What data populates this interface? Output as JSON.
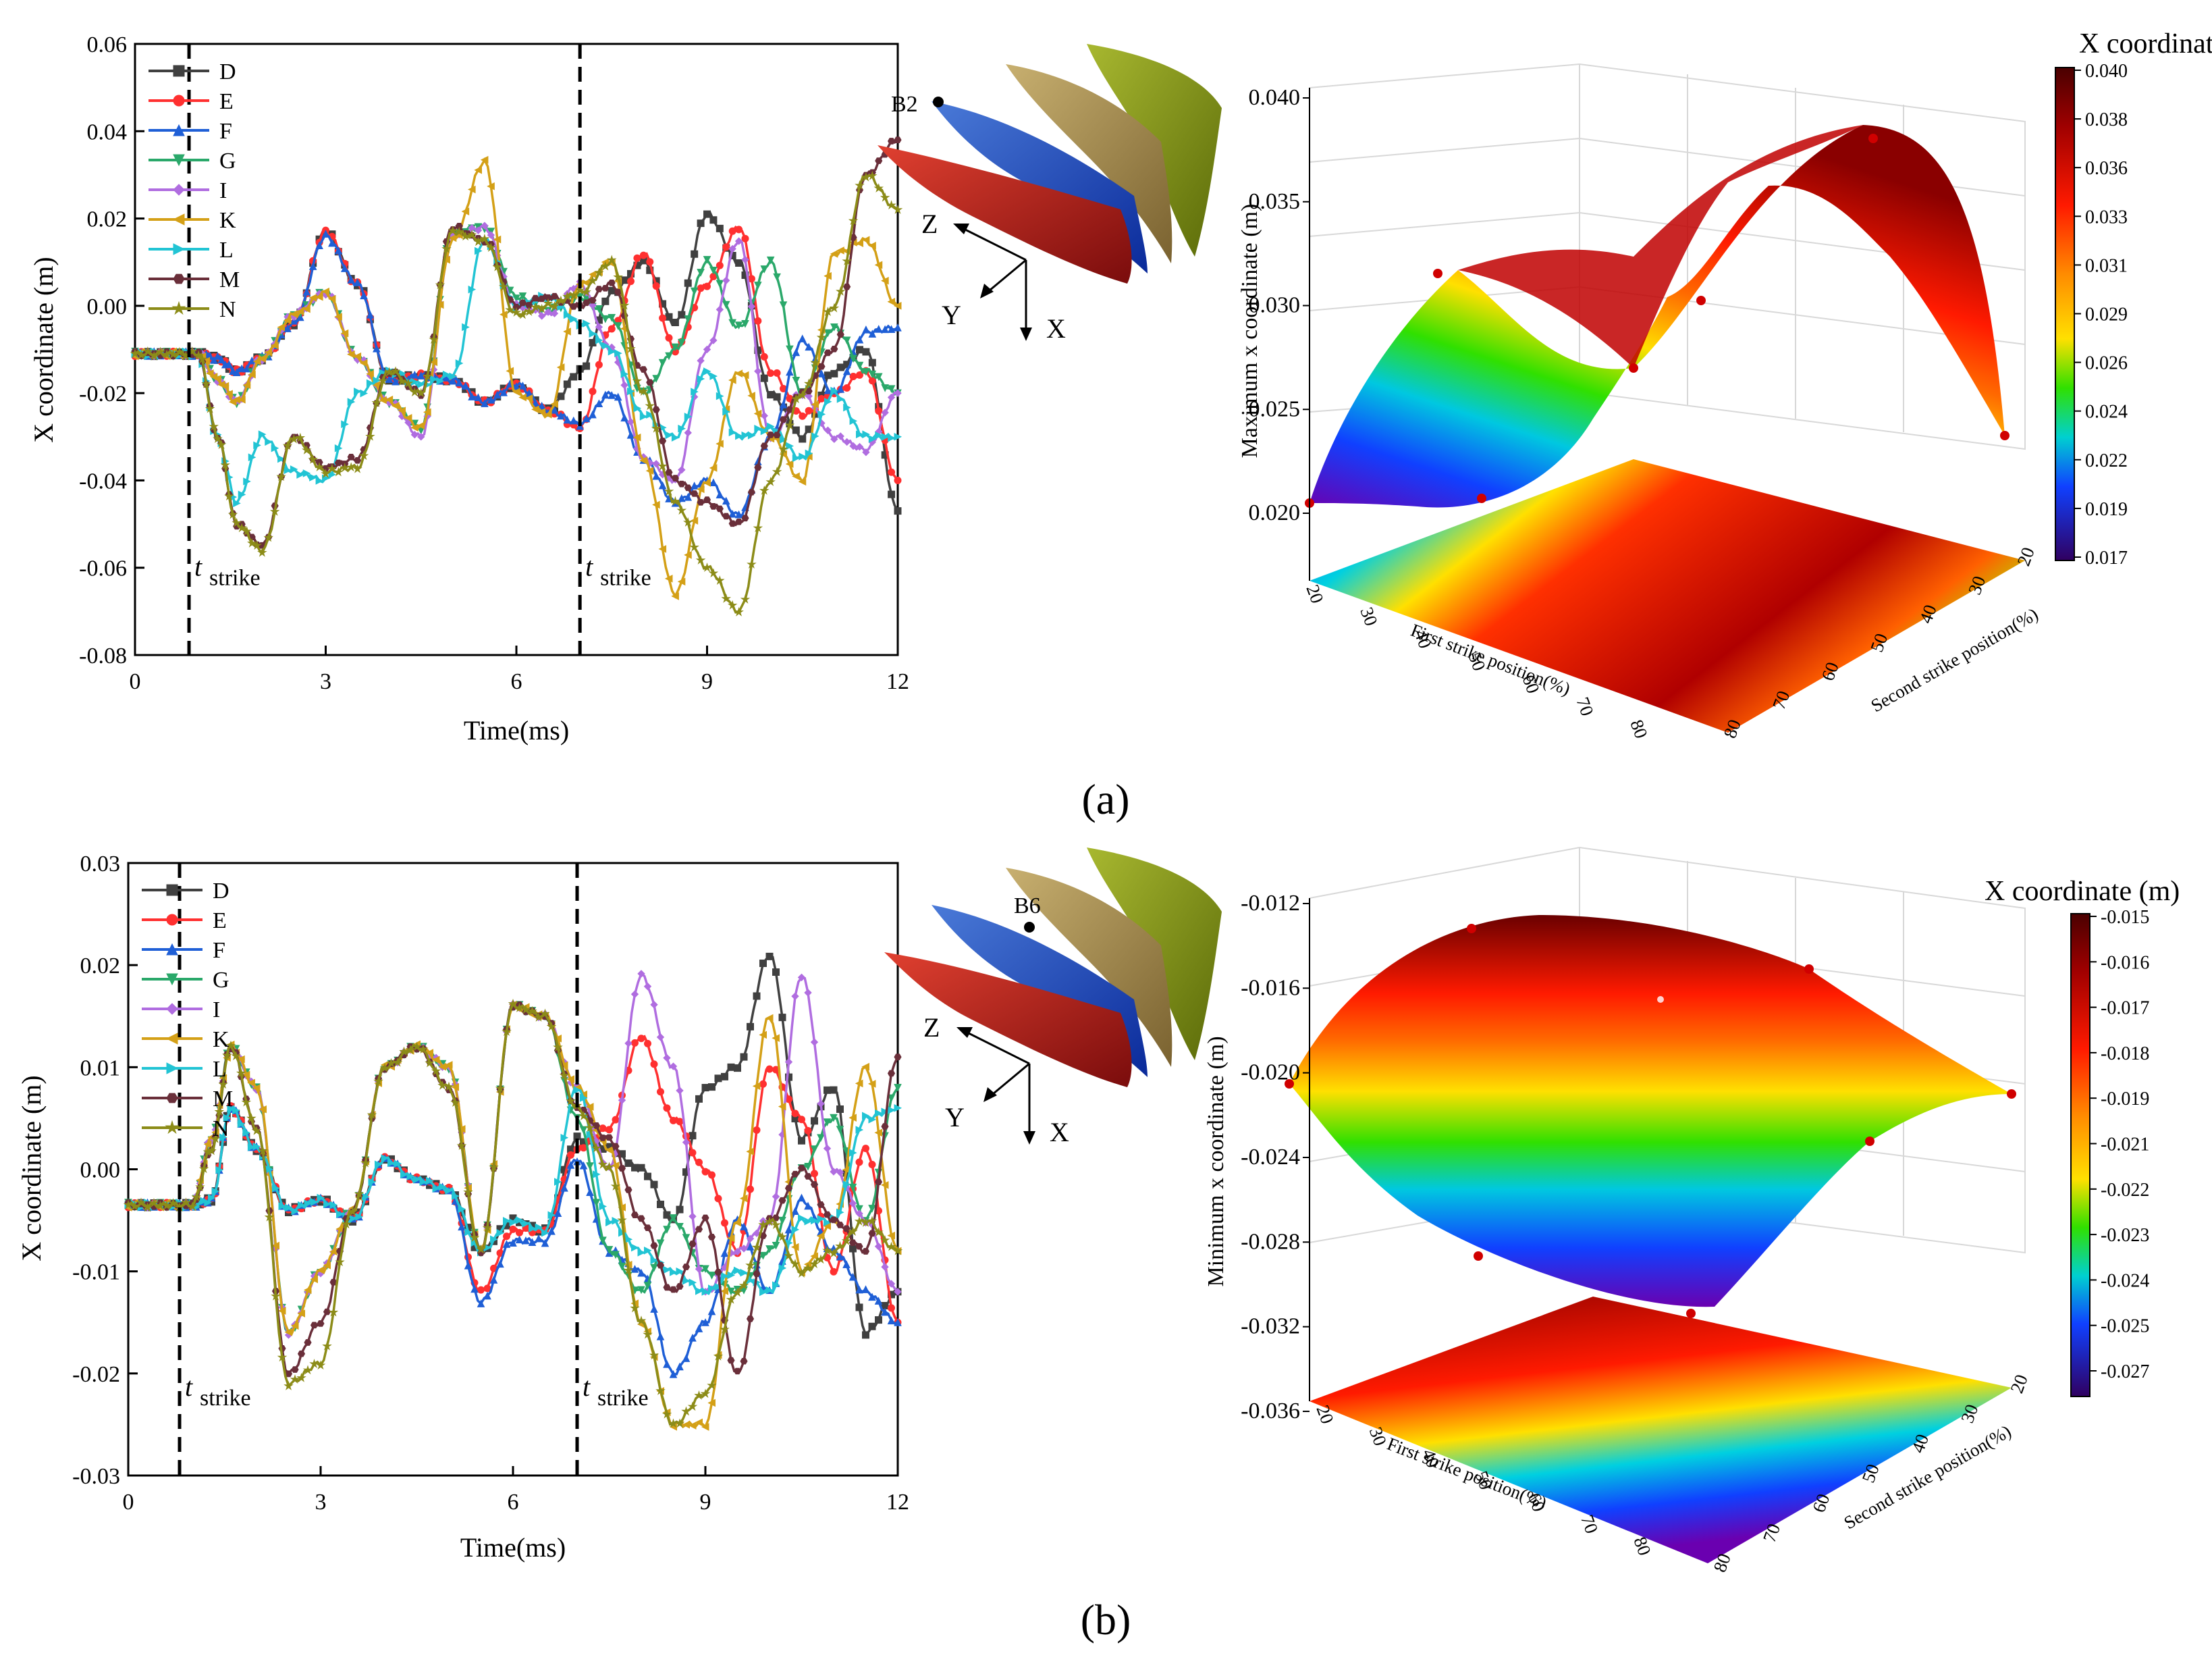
{
  "chart_data": [
    {
      "id": "a-line",
      "type": "line",
      "xlabel": "Time(ms)",
      "ylabel": "X coordinate (m)",
      "xlim": [
        0,
        12
      ],
      "ylim": [
        -0.08,
        0.06
      ],
      "xticks": [
        0,
        3,
        6,
        9,
        12
      ],
      "yticks": [
        -0.08,
        -0.06,
        -0.04,
        -0.02,
        0.0,
        0.02,
        0.04,
        0.06
      ],
      "xtick_labels": [
        "0",
        "3",
        "6",
        "9",
        "12"
      ],
      "ytick_labels": [
        "-0.08",
        "-0.06",
        "-0.04",
        "-0.02",
        "0.00",
        "0.02",
        "0.04",
        "0.06"
      ],
      "strike_times": [
        0.85,
        7.0
      ],
      "strike_label": "t",
      "strike_sub": "strike",
      "x": [
        0,
        0.5,
        1.0,
        1.3,
        1.6,
        2.0,
        2.5,
        3.0,
        3.5,
        4.0,
        4.5,
        5.0,
        5.5,
        6.0,
        6.5,
        7.0,
        7.5,
        8.0,
        8.5,
        9.0,
        9.5,
        10.0,
        10.5,
        11.0,
        11.5,
        12.0
      ],
      "series": [
        {
          "name": "D",
          "color": "#404040",
          "marker": "square",
          "values": [
            -0.011,
            -0.011,
            -0.011,
            -0.012,
            -0.015,
            -0.012,
            -0.004,
            0.017,
            0.005,
            -0.017,
            -0.016,
            -0.017,
            -0.022,
            -0.018,
            -0.024,
            -0.015,
            0.003,
            0.01,
            -0.004,
            0.021,
            0.01,
            -0.02,
            -0.03,
            -0.015,
            -0.01,
            -0.047
          ]
        },
        {
          "name": "E",
          "color": "#ff3030",
          "marker": "circle",
          "values": [
            -0.011,
            -0.011,
            -0.011,
            -0.012,
            -0.015,
            -0.012,
            -0.004,
            0.017,
            0.005,
            -0.017,
            -0.016,
            -0.017,
            -0.022,
            -0.018,
            -0.024,
            -0.028,
            -0.005,
            0.012,
            -0.01,
            0.005,
            0.018,
            -0.015,
            -0.025,
            -0.02,
            -0.015,
            -0.04
          ]
        },
        {
          "name": "F",
          "color": "#1f5fd6",
          "marker": "triangle",
          "values": [
            -0.011,
            -0.011,
            -0.011,
            -0.012,
            -0.015,
            -0.012,
            -0.004,
            0.016,
            0.005,
            -0.017,
            -0.016,
            -0.017,
            -0.022,
            -0.018,
            -0.024,
            -0.027,
            -0.02,
            -0.035,
            -0.045,
            -0.04,
            -0.048,
            -0.03,
            -0.008,
            -0.02,
            -0.006,
            -0.005
          ]
        },
        {
          "name": "G",
          "color": "#2aa86a",
          "marker": "triangle-down",
          "values": [
            -0.011,
            -0.011,
            -0.011,
            -0.017,
            -0.022,
            -0.012,
            -0.002,
            0.003,
            -0.012,
            -0.022,
            -0.028,
            0.017,
            0.018,
            0.002,
            -0.001,
            0.002,
            -0.003,
            -0.02,
            -0.01,
            0.01,
            -0.005,
            0.01,
            -0.02,
            -0.005,
            -0.015,
            -0.02
          ]
        },
        {
          "name": "I",
          "color": "#b06de0",
          "marker": "diamond",
          "values": [
            -0.011,
            -0.011,
            -0.011,
            -0.017,
            -0.022,
            -0.012,
            -0.002,
            0.003,
            -0.012,
            -0.022,
            -0.03,
            0.016,
            0.018,
            0.0,
            -0.002,
            0.005,
            -0.01,
            -0.035,
            -0.04,
            -0.01,
            0.015,
            -0.03,
            -0.02,
            -0.03,
            -0.033,
            -0.02
          ]
        },
        {
          "name": "K",
          "color": "#d4a017",
          "marker": "triangle-left",
          "values": [
            -0.011,
            -0.011,
            -0.011,
            -0.017,
            -0.022,
            -0.012,
            -0.002,
            0.003,
            -0.012,
            -0.022,
            -0.028,
            0.015,
            0.033,
            -0.02,
            -0.025,
            0.005,
            0.01,
            -0.035,
            -0.066,
            -0.04,
            -0.015,
            -0.03,
            -0.04,
            0.012,
            0.015,
            0.0
          ]
        },
        {
          "name": "L",
          "color": "#22c4d4",
          "marker": "triangle-right",
          "values": [
            -0.011,
            -0.011,
            -0.011,
            -0.03,
            -0.045,
            -0.03,
            -0.038,
            -0.04,
            -0.02,
            -0.015,
            -0.018,
            -0.016,
            0.015,
            0.0,
            0.002,
            -0.004,
            -0.01,
            -0.025,
            -0.03,
            -0.015,
            -0.03,
            -0.028,
            -0.035,
            -0.02,
            -0.03,
            -0.03
          ]
        },
        {
          "name": "M",
          "color": "#6a2f3a",
          "marker": "hexagon",
          "values": [
            -0.011,
            -0.011,
            -0.011,
            -0.03,
            -0.05,
            -0.055,
            -0.03,
            -0.037,
            -0.035,
            -0.015,
            -0.02,
            0.018,
            0.015,
            0.0,
            0.002,
            0.0,
            0.005,
            -0.015,
            -0.04,
            -0.045,
            -0.05,
            -0.03,
            -0.02,
            -0.01,
            0.03,
            0.038
          ]
        },
        {
          "name": "N",
          "color": "#8c8c18",
          "marker": "star",
          "values": [
            -0.011,
            -0.011,
            -0.011,
            -0.03,
            -0.05,
            -0.056,
            -0.03,
            -0.038,
            -0.037,
            -0.015,
            -0.02,
            0.017,
            0.015,
            -0.002,
            0.0,
            0.003,
            0.01,
            -0.02,
            -0.045,
            -0.06,
            -0.07,
            -0.04,
            -0.02,
            0.0,
            0.03,
            0.022
          ]
        }
      ]
    },
    {
      "id": "a-surface",
      "type": "surface3d",
      "zlabel": "Maximum x coordinate (m)",
      "xlabel": "First strike position(%)",
      "ylabel": "Second strike position(%)",
      "zticks": [
        "0.040",
        "0.035",
        "0.030",
        "0.025",
        "0.020"
      ],
      "x_ticks": [
        "20",
        "30",
        "40",
        "50",
        "60",
        "70",
        "80"
      ],
      "y_ticks": [
        "80",
        "70",
        "60",
        "50",
        "40",
        "30",
        "20"
      ],
      "colorbar_title": "X coordinate (m)",
      "colorbar_ticks": [
        "0.040",
        "0.038",
        "0.036",
        "0.033",
        "0.031",
        "0.029",
        "0.026",
        "0.024",
        "0.022",
        "0.019",
        "0.017"
      ],
      "zrange": [
        0.017,
        0.04
      ],
      "inset_label": "B2",
      "axis_labels": [
        "Z",
        "Y",
        "X"
      ]
    },
    {
      "id": "b-line",
      "type": "line",
      "xlabel": "Time(ms)",
      "ylabel": "X coordinate (m)",
      "xlim": [
        0,
        12
      ],
      "ylim": [
        -0.03,
        0.03
      ],
      "xticks": [
        0,
        3,
        6,
        9,
        12
      ],
      "yticks": [
        -0.03,
        -0.02,
        -0.01,
        0.0,
        0.01,
        0.02,
        0.03
      ],
      "xtick_labels": [
        "0",
        "3",
        "6",
        "9",
        "12"
      ],
      "ytick_labels": [
        "-0.03",
        "-0.02",
        "-0.01",
        "0.00",
        "0.01",
        "0.02",
        "0.03"
      ],
      "strike_times": [
        0.8,
        7.0
      ],
      "strike_label": "t",
      "strike_sub": "strike",
      "x": [
        0,
        0.5,
        1.0,
        1.3,
        1.6,
        2.0,
        2.5,
        3.0,
        3.5,
        4.0,
        4.5,
        5.0,
        5.5,
        6.0,
        6.5,
        7.0,
        7.5,
        8.0,
        8.5,
        9.0,
        9.5,
        10.0,
        10.5,
        11.0,
        11.5,
        12.0
      ],
      "series": [
        {
          "name": "D",
          "color": "#404040",
          "marker": "square",
          "values": [
            -0.0035,
            -0.0035,
            -0.0035,
            -0.003,
            0.006,
            0.002,
            -0.004,
            -0.003,
            -0.005,
            0.001,
            -0.001,
            -0.002,
            -0.008,
            -0.005,
            -0.006,
            0.003,
            0.002,
            0.0,
            -0.005,
            0.008,
            0.01,
            0.021,
            0.003,
            0.008,
            -0.016,
            -0.012
          ]
        },
        {
          "name": "E",
          "color": "#ff3030",
          "marker": "circle",
          "values": [
            -0.0035,
            -0.0035,
            -0.0035,
            -0.003,
            0.006,
            0.002,
            -0.004,
            -0.003,
            -0.005,
            0.001,
            -0.001,
            -0.002,
            -0.012,
            -0.006,
            -0.006,
            0.002,
            0.004,
            0.013,
            0.005,
            0.0,
            -0.008,
            0.01,
            0.005,
            -0.01,
            0.002,
            -0.015
          ]
        },
        {
          "name": "F",
          "color": "#1f5fd6",
          "marker": "triangle",
          "values": [
            -0.0035,
            -0.0035,
            -0.0035,
            -0.003,
            0.006,
            0.002,
            -0.004,
            -0.003,
            -0.005,
            0.001,
            -0.001,
            -0.002,
            -0.013,
            -0.007,
            -0.007,
            0.001,
            -0.008,
            -0.01,
            -0.02,
            -0.015,
            -0.005,
            -0.012,
            -0.003,
            -0.008,
            -0.012,
            -0.015
          ]
        },
        {
          "name": "G",
          "color": "#2aa86a",
          "marker": "triangle-down",
          "values": [
            -0.0035,
            -0.0035,
            -0.0035,
            0.003,
            0.012,
            0.008,
            -0.016,
            -0.01,
            -0.004,
            0.01,
            0.012,
            0.01,
            -0.008,
            0.016,
            0.015,
            0.005,
            -0.008,
            -0.012,
            -0.005,
            -0.01,
            -0.012,
            -0.008,
            0.0,
            0.005,
            -0.005,
            0.008
          ]
        },
        {
          "name": "I",
          "color": "#b06de0",
          "marker": "diamond",
          "values": [
            -0.0035,
            -0.0035,
            -0.0035,
            0.003,
            0.012,
            0.008,
            -0.016,
            -0.01,
            -0.004,
            0.01,
            0.012,
            0.01,
            -0.008,
            0.016,
            0.015,
            0.008,
            0.0,
            0.019,
            0.01,
            -0.012,
            -0.008,
            -0.005,
            0.019,
            0.0,
            -0.005,
            -0.012
          ]
        },
        {
          "name": "K",
          "color": "#d4a017",
          "marker": "triangle-left",
          "values": [
            -0.0035,
            -0.0035,
            -0.0035,
            0.003,
            0.012,
            0.008,
            -0.016,
            -0.01,
            -0.004,
            0.01,
            0.012,
            0.01,
            -0.008,
            0.016,
            0.015,
            0.008,
            0.002,
            -0.015,
            -0.025,
            -0.025,
            -0.005,
            0.015,
            -0.01,
            -0.005,
            0.01,
            -0.008
          ]
        },
        {
          "name": "L",
          "color": "#22c4d4",
          "marker": "triangle-right",
          "values": [
            -0.0035,
            -0.0035,
            -0.0035,
            -0.003,
            0.006,
            0.002,
            -0.004,
            -0.003,
            -0.005,
            0.001,
            -0.001,
            -0.002,
            -0.008,
            -0.005,
            -0.006,
            0.008,
            -0.005,
            -0.008,
            -0.01,
            -0.012,
            -0.01,
            -0.012,
            -0.005,
            -0.005,
            0.005,
            0.006
          ]
        },
        {
          "name": "M",
          "color": "#6a2f3a",
          "marker": "hexagon",
          "values": [
            -0.0035,
            -0.0035,
            -0.0035,
            0.002,
            0.012,
            0.004,
            -0.02,
            -0.015,
            -0.004,
            0.01,
            0.012,
            0.008,
            -0.008,
            0.016,
            0.015,
            0.006,
            0.003,
            -0.005,
            -0.012,
            -0.005,
            -0.02,
            -0.005,
            0.0,
            -0.005,
            -0.008,
            0.011
          ]
        },
        {
          "name": "N",
          "color": "#8c8c18",
          "marker": "star",
          "values": [
            -0.0035,
            -0.0035,
            -0.0035,
            0.002,
            0.012,
            0.004,
            -0.021,
            -0.019,
            -0.004,
            0.01,
            0.012,
            0.008,
            -0.008,
            0.016,
            0.015,
            0.006,
            0.0,
            -0.015,
            -0.025,
            -0.022,
            -0.012,
            -0.005,
            -0.01,
            -0.008,
            -0.005,
            -0.008
          ]
        }
      ]
    },
    {
      "id": "b-surface",
      "type": "surface3d",
      "zlabel": "Minimum x coordinate (m)",
      "xlabel": "First strike position(%)",
      "ylabel": "Second strike position(%)",
      "zticks": [
        "-0.012",
        "-0.016",
        "-0.020",
        "-0.024",
        "-0.028",
        "-0.032",
        "-0.036"
      ],
      "x_ticks": [
        "20",
        "30",
        "40",
        "50",
        "60",
        "70",
        "80"
      ],
      "y_ticks": [
        "80",
        "70",
        "60",
        "50",
        "40",
        "30",
        "20"
      ],
      "colorbar_title": "X coordinate (m)",
      "colorbar_ticks": [
        "-0.015",
        "-0.016",
        "-0.017",
        "-0.018",
        "-0.019",
        "-0.021",
        "-0.022",
        "-0.023",
        "-0.024",
        "-0.025",
        "-0.027"
      ],
      "zrange": [
        -0.027,
        -0.015
      ],
      "inset_label": "B6",
      "axis_labels": [
        "Z",
        "Y",
        "X"
      ]
    }
  ],
  "panels": {
    "a": "(a)",
    "b": "(b)"
  },
  "colors": {
    "surface_high": "#5a0000",
    "surface_red": "#ff1a00",
    "surface_mid": "#e0ff00",
    "surface_low": "#4b0082"
  }
}
